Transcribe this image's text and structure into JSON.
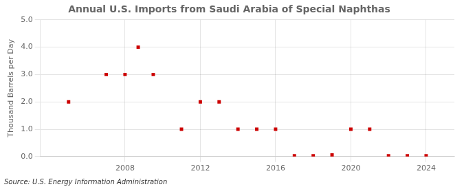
{
  "chart_data": {
    "type": "scatter",
    "title": "Annual U.S. Imports from Saudi Arabia of Special Naphthas",
    "ylabel": "Thousand Barrels per Day",
    "source": "Source: U.S. Energy Information Administration",
    "x": [
      2005,
      2007,
      2008,
      2008.7,
      2009.5,
      2011,
      2012,
      2013,
      2014,
      2015,
      2016,
      2017,
      2018,
      2019,
      2020,
      2021,
      2022,
      2023,
      2024
    ],
    "values": [
      2.0,
      3.0,
      3.0,
      4.0,
      3.0,
      1.0,
      2.0,
      2.0,
      1.0,
      1.0,
      1.0,
      0.03,
      0.03,
      0.06,
      1.0,
      1.0,
      0.03,
      0.03,
      0.03
    ],
    "color": "#cc0000",
    "marker": "square",
    "grid": true,
    "xlim": [
      2003.5,
      2025.5
    ],
    "ylim": [
      0.0,
      5.0
    ],
    "xticks": [
      2008,
      2012,
      2016,
      2020,
      2024
    ],
    "yticks": [
      {
        "value": 0.0,
        "label": "0.0"
      },
      {
        "value": 1.0,
        "label": "1.0"
      },
      {
        "value": 2.0,
        "label": "2.0"
      },
      {
        "value": 3.0,
        "label": "3.0"
      },
      {
        "value": 4.0,
        "label": "4.0"
      },
      {
        "value": 5.0,
        "label": "5.0"
      }
    ]
  }
}
